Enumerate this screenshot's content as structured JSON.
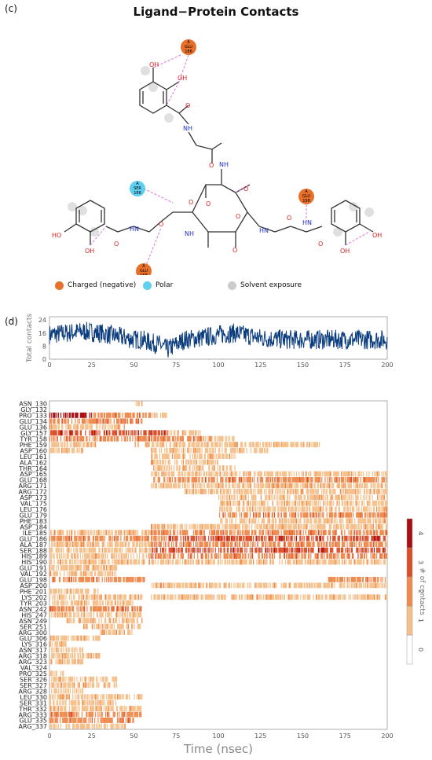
{
  "panel_c": {
    "label": "(c)",
    "title": "Ligand−Protein Contacts",
    "residues": [
      {
        "chain": "A",
        "name": "GLU",
        "num": "186",
        "kind": "charged"
      },
      {
        "chain": "A",
        "name": "SER",
        "num": "188",
        "kind": "polar"
      },
      {
        "chain": "A",
        "name": "GLU",
        "num": "198",
        "kind": "charged"
      },
      {
        "chain": "A",
        "name": "GLU",
        "num": "168",
        "kind": "charged"
      }
    ],
    "legend": [
      {
        "label": "Charged (negative)",
        "color": "#e8702a"
      },
      {
        "label": "Polar",
        "color": "#5fd0ef"
      },
      {
        "label": "Solvent exposure",
        "color": "#cccccc"
      }
    ],
    "colors": {
      "hbond": "#e070e0",
      "oxygen": "#e02020",
      "nitrogen": "#2030c0",
      "bond": "#333333"
    }
  },
  "panel_d": {
    "label": "(d)"
  },
  "chart_data": [
    {
      "type": "line",
      "ylabel": "Total contacts",
      "xlim": [
        0,
        200
      ],
      "ylim": [
        0,
        26
      ],
      "yticks": [
        0,
        8,
        16,
        24
      ],
      "xticks": [
        0,
        25,
        50,
        75,
        100,
        125,
        150,
        175,
        200
      ],
      "series_color": "#0b3c7d",
      "profile_x": [
        0,
        10,
        20,
        30,
        40,
        50,
        55,
        60,
        65,
        70,
        75,
        80,
        90,
        100,
        110,
        115,
        125,
        140,
        160,
        180,
        200
      ],
      "profile_y": [
        15,
        16,
        17,
        16,
        14,
        12,
        12,
        10,
        9,
        6,
        9,
        12,
        13,
        15,
        16,
        15,
        13,
        12,
        12,
        12,
        12
      ]
    },
    {
      "type": "heatmap",
      "xlabel": "Time (nsec)",
      "xlim": [
        0,
        200
      ],
      "xticks": [
        0,
        25,
        50,
        75,
        100,
        125,
        150,
        175,
        200
      ],
      "colorbar_label": "# of contacts",
      "colorbar_ticks": [
        "0",
        "1",
        "2",
        "3",
        "4"
      ],
      "colors": [
        "#ffffff",
        "#f6c08a",
        "#ef8a4e",
        "#dc4e28",
        "#a80f12"
      ],
      "rows": [
        {
          "label": "ASN_130",
          "segs": [
            [
              50,
              55,
              1
            ]
          ]
        },
        {
          "label": "GLY_132",
          "segs": []
        },
        {
          "label": "PRO_133",
          "segs": [
            [
              0,
              25,
              4
            ],
            [
              25,
              60,
              2
            ],
            [
              60,
              70,
              1
            ]
          ]
        },
        {
          "label": "GLU_134",
          "segs": [
            [
              0,
              55,
              2
            ]
          ]
        },
        {
          "label": "GLU_136",
          "segs": [
            [
              0,
              45,
              1
            ]
          ]
        },
        {
          "label": "GLY_157",
          "segs": [
            [
              0,
              70,
              3
            ],
            [
              70,
              90,
              1
            ]
          ]
        },
        {
          "label": "TYR_158",
          "segs": [
            [
              0,
              90,
              2
            ],
            [
              90,
              110,
              1
            ]
          ]
        },
        {
          "label": "PHE_159",
          "segs": [
            [
              0,
              30,
              1
            ],
            [
              50,
              160,
              1
            ]
          ]
        },
        {
          "label": "ASP_160",
          "segs": [
            [
              0,
              20,
              1
            ],
            [
              60,
              130,
              1
            ]
          ]
        },
        {
          "label": "LEU_161",
          "segs": [
            [
              60,
              110,
              1
            ]
          ]
        },
        {
          "label": "ALA_162",
          "segs": [
            [
              60,
              100,
              1
            ]
          ]
        },
        {
          "label": "THR_164",
          "segs": [
            [
              60,
              110,
              1
            ]
          ]
        },
        {
          "label": "ASP_165",
          "segs": [
            [
              60,
              200,
              1
            ]
          ]
        },
        {
          "label": "GLU_168",
          "segs": [
            [
              60,
              200,
              2
            ]
          ]
        },
        {
          "label": "ARG_171",
          "segs": [
            [
              60,
              200,
              1
            ]
          ]
        },
        {
          "label": "ARG_172",
          "segs": [
            [
              80,
              200,
              1
            ]
          ]
        },
        {
          "label": "ASP_173",
          "segs": [
            [
              100,
              200,
              1
            ]
          ]
        },
        {
          "label": "VAL_175",
          "segs": [
            [
              100,
              200,
              1
            ]
          ]
        },
        {
          "label": "LEU_176",
          "segs": [
            [
              100,
              200,
              1
            ]
          ]
        },
        {
          "label": "GLU_179",
          "segs": [
            [
              100,
              200,
              2
            ]
          ]
        },
        {
          "label": "PHE_183",
          "segs": [
            [
              100,
              200,
              1
            ]
          ]
        },
        {
          "label": "ASP_184",
          "segs": [
            [
              60,
              200,
              1
            ]
          ]
        },
        {
          "label": "ILE_185",
          "segs": [
            [
              0,
              60,
              1
            ],
            [
              60,
              200,
              2
            ]
          ]
        },
        {
          "label": "GLU_186",
          "segs": [
            [
              0,
              70,
              2
            ],
            [
              70,
              200,
              3
            ]
          ]
        },
        {
          "label": "ALA_187",
          "segs": [
            [
              0,
              60,
              1
            ],
            [
              60,
              200,
              2
            ]
          ]
        },
        {
          "label": "SER_188",
          "segs": [
            [
              0,
              60,
              1
            ],
            [
              60,
              200,
              3
            ]
          ]
        },
        {
          "label": "HIS_189",
          "segs": [
            [
              0,
              60,
              1
            ],
            [
              60,
              200,
              2
            ]
          ]
        },
        {
          "label": "HIS_190",
          "segs": [
            [
              0,
              60,
              1
            ],
            [
              60,
              200,
              1
            ]
          ]
        },
        {
          "label": "GLU_191",
          "segs": [
            [
              0,
              40,
              1
            ]
          ]
        },
        {
          "label": "VAL_192",
          "segs": [
            [
              0,
              40,
              1
            ]
          ]
        },
        {
          "label": "GLU_198",
          "segs": [
            [
              0,
              58,
              2
            ],
            [
              165,
              200,
              2
            ]
          ]
        },
        {
          "label": "ASP_200",
          "segs": [
            [
              60,
              200,
              1
            ]
          ]
        },
        {
          "label": "PHE_201",
          "segs": [
            [
              0,
              30,
              1
            ]
          ]
        },
        {
          "label": "LYS_202",
          "segs": [
            [
              0,
              55,
              1
            ],
            [
              60,
              200,
              1
            ]
          ]
        },
        {
          "label": "TYR_203",
          "segs": [
            [
              0,
              50,
              1
            ]
          ]
        },
        {
          "label": "ASN_242",
          "segs": [
            [
              0,
              55,
              2
            ]
          ]
        },
        {
          "label": "HIS_247",
          "segs": [
            [
              0,
              55,
              1
            ]
          ]
        },
        {
          "label": "ASN_249",
          "segs": [
            [
              10,
              55,
              1
            ]
          ]
        },
        {
          "label": "SER_251",
          "segs": [
            [
              20,
              55,
              1
            ]
          ]
        },
        {
          "label": "ARG_300",
          "segs": [
            [
              30,
              50,
              1
            ]
          ]
        },
        {
          "label": "GLU_306",
          "segs": [
            [
              0,
              30,
              1
            ]
          ]
        },
        {
          "label": "LYS_316",
          "segs": [
            [
              0,
              10,
              1
            ]
          ]
        },
        {
          "label": "ASN_317",
          "segs": [
            [
              0,
              20,
              1
            ]
          ]
        },
        {
          "label": "ARG_318",
          "segs": [
            [
              0,
              30,
              1
            ]
          ]
        },
        {
          "label": "ARG_323",
          "segs": [
            [
              0,
              20,
              1
            ]
          ]
        },
        {
          "label": "VAL_324",
          "segs": []
        },
        {
          "label": "PRO_325",
          "segs": [
            [
              0,
              10,
              1
            ]
          ]
        },
        {
          "label": "SER_326",
          "segs": [
            [
              0,
              40,
              1
            ]
          ]
        },
        {
          "label": "SER_327",
          "segs": [
            [
              0,
              40,
              1
            ]
          ]
        },
        {
          "label": "ARG_328",
          "segs": [
            [
              0,
              20,
              1
            ]
          ]
        },
        {
          "label": "LEU_330",
          "segs": [
            [
              0,
              55,
              1
            ]
          ]
        },
        {
          "label": "SER_331",
          "segs": [
            [
              0,
              40,
              1
            ]
          ]
        },
        {
          "label": "THR_332",
          "segs": [
            [
              0,
              55,
              1
            ]
          ]
        },
        {
          "label": "ARG_333",
          "segs": [
            [
              0,
              55,
              2
            ]
          ]
        },
        {
          "label": "GLU_335",
          "segs": [
            [
              0,
              50,
              2
            ]
          ]
        },
        {
          "label": "ARG_337",
          "segs": [
            [
              0,
              45,
              1
            ]
          ]
        }
      ]
    }
  ]
}
